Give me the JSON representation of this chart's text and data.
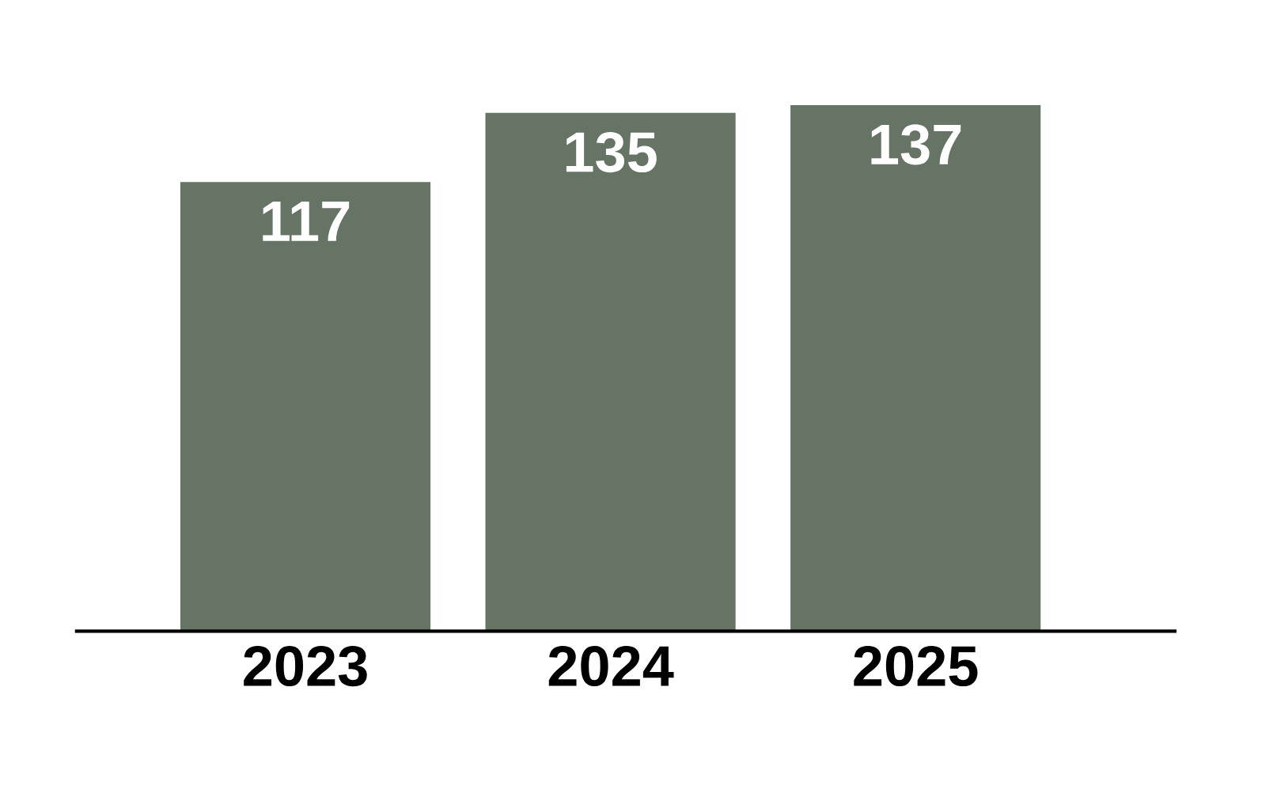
{
  "chart_data": {
    "type": "bar",
    "categories": [
      "2023",
      "2024",
      "2025"
    ],
    "values": [
      117,
      135,
      137
    ],
    "color": "#667466",
    "data_labels": true,
    "grid": false
  }
}
